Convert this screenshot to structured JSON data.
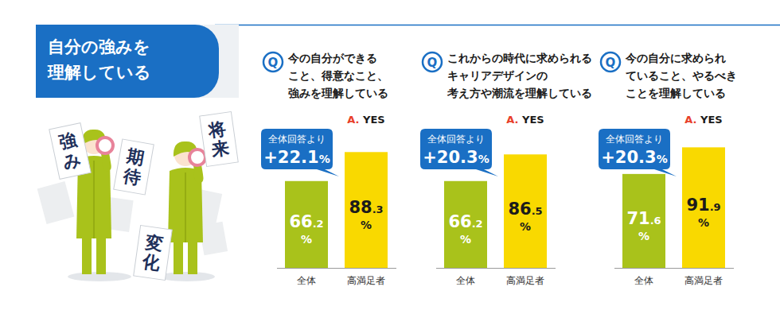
{
  "header": {
    "title": [
      "自分の強みを",
      "理解している"
    ]
  },
  "illustration": {
    "labels": [
      "強み",
      "期待",
      "将来",
      "変化"
    ]
  },
  "question_mark": "Q",
  "chart_data": [
    {
      "type": "bar",
      "title": "今の自分ができる\nこと、得意なこと、\n強みを理解している",
      "subtitle": "A. YES",
      "categories": [
        "全体",
        "高満足者"
      ],
      "values": [
        66.2,
        88.3
      ],
      "value_labels": [
        "66.2%",
        "88.3%"
      ],
      "colors": [
        "#a9c21b",
        "#f9d900"
      ],
      "ylim": [
        0,
        100
      ],
      "data_labels": true,
      "tick_labels": false,
      "annotations": [
        "全体回答より",
        "+22.1%"
      ]
    },
    {
      "type": "bar",
      "title": "これからの時代に求められる\nキャリアデザインの\n考え方や潮流を理解している",
      "subtitle": "A. YES",
      "categories": [
        "全体",
        "高満足者"
      ],
      "values": [
        66.2,
        86.5
      ],
      "value_labels": [
        "66.2%",
        "86.5%"
      ],
      "colors": [
        "#a9c21b",
        "#f9d900"
      ],
      "ylim": [
        0,
        100
      ],
      "data_labels": true,
      "tick_labels": false,
      "annotations": [
        "全体回答より",
        "+20.3%"
      ]
    },
    {
      "type": "bar",
      "title": "今の自分に求められ\nていること、やるべき\nことを理解している",
      "subtitle": "A. YES",
      "categories": [
        "全体",
        "高満足者"
      ],
      "values": [
        71.6,
        91.9
      ],
      "value_labels": [
        "71.6%",
        "91.9%"
      ],
      "colors": [
        "#a9c21b",
        "#f9d900"
      ],
      "ylim": [
        0,
        100
      ],
      "data_labels": true,
      "tick_labels": false,
      "annotations": [
        "全体回答より",
        "+20.3%"
      ]
    }
  ]
}
